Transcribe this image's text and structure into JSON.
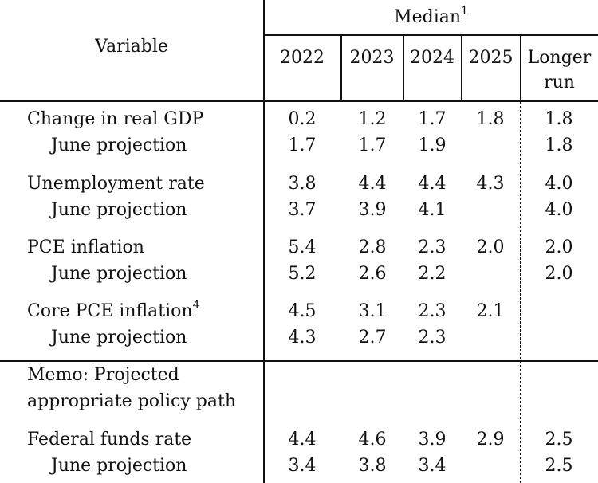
{
  "header": {
    "variable_label": "Variable",
    "median_label": "Median",
    "median_sup": "1",
    "years": [
      "2022",
      "2023",
      "2024",
      "2025"
    ],
    "longer_run_line1": "Longer",
    "longer_run_line2": "run"
  },
  "rows": [
    {
      "label": "Change in real GDP",
      "sup": "",
      "indent": false,
      "values": [
        "0.2",
        "1.2",
        "1.7",
        "1.8",
        "1.8"
      ]
    },
    {
      "label": "June projection",
      "sup": "",
      "indent": true,
      "values": [
        "1.7",
        "1.7",
        "1.9",
        "",
        "1.8"
      ]
    },
    {
      "label": "Unemployment rate",
      "sup": "",
      "indent": false,
      "values": [
        "3.8",
        "4.4",
        "4.4",
        "4.3",
        "4.0"
      ]
    },
    {
      "label": "June projection",
      "sup": "",
      "indent": true,
      "values": [
        "3.7",
        "3.9",
        "4.1",
        "",
        "4.0"
      ]
    },
    {
      "label": "PCE inflation",
      "sup": "",
      "indent": false,
      "values": [
        "5.4",
        "2.8",
        "2.3",
        "2.0",
        "2.0"
      ]
    },
    {
      "label": "June projection",
      "sup": "",
      "indent": true,
      "values": [
        "5.2",
        "2.6",
        "2.2",
        "",
        "2.0"
      ]
    },
    {
      "label": "Core PCE inflation",
      "sup": "4",
      "indent": false,
      "values": [
        "4.5",
        "3.1",
        "2.3",
        "2.1",
        ""
      ]
    },
    {
      "label": "June projection",
      "sup": "",
      "indent": true,
      "values": [
        "4.3",
        "2.7",
        "2.3",
        "",
        ""
      ]
    }
  ],
  "memo": {
    "line1": "Memo: Projected",
    "line2": "appropriate policy path"
  },
  "memo_rows": [
    {
      "label": "Federal funds rate",
      "sup": "",
      "indent": false,
      "values": [
        "4.4",
        "4.6",
        "3.9",
        "2.9",
        "2.5"
      ]
    },
    {
      "label": "June projection",
      "sup": "",
      "indent": true,
      "values": [
        "3.4",
        "3.8",
        "3.4",
        "",
        "2.5"
      ]
    }
  ]
}
